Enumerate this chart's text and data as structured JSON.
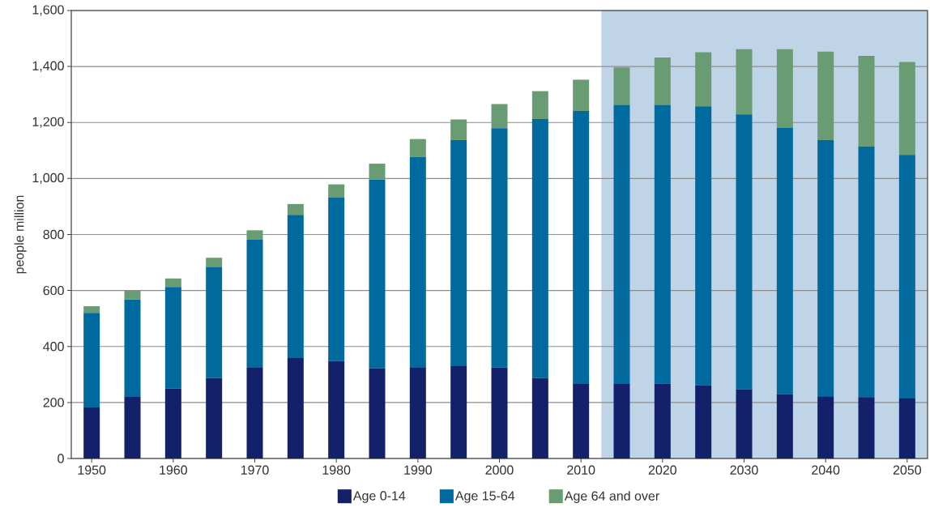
{
  "chart_data": {
    "type": "bar",
    "stacked": true,
    "ylabel": "people million",
    "x": [
      1950,
      1955,
      1960,
      1965,
      1970,
      1975,
      1980,
      1985,
      1990,
      1995,
      2000,
      2005,
      2010,
      2015,
      2020,
      2025,
      2030,
      2035,
      2040,
      2045,
      2050
    ],
    "xlim": [
      1947.5,
      2052.5
    ],
    "xticks": [
      1950,
      1960,
      1970,
      1980,
      1990,
      2000,
      2010,
      2020,
      2030,
      2040,
      2050
    ],
    "ylim": [
      0,
      1600
    ],
    "yticks": [
      {
        "value": 0,
        "label": "0"
      },
      {
        "value": 200,
        "label": "200"
      },
      {
        "value": 400,
        "label": "400"
      },
      {
        "value": 600,
        "label": "600"
      },
      {
        "value": 800,
        "label": "800"
      },
      {
        "value": 1000,
        "label": "1,000"
      },
      {
        "value": 1200,
        "label": "1,200"
      },
      {
        "value": 1400,
        "label": "1,400"
      },
      {
        "value": 1600,
        "label": "1,600"
      }
    ],
    "grid": "y",
    "legend": "bottom",
    "bands": [
      {
        "axis": "x",
        "from": 2012.5,
        "to": 2052.5,
        "color": "#c0d4e8"
      }
    ],
    "series": [
      {
        "name": "Age 0-14",
        "color": "#13206a",
        "values": [
          182,
          222,
          250,
          287,
          324,
          359,
          349,
          322,
          324,
          332,
          325,
          287,
          268,
          266,
          267,
          262,
          247,
          229,
          222,
          219,
          216
        ]
      },
      {
        "name": "Age 15-64",
        "color": "#006a9e",
        "values": [
          338,
          346,
          363,
          397,
          457,
          511,
          584,
          675,
          754,
          805,
          855,
          925,
          973,
          997,
          996,
          996,
          982,
          952,
          915,
          895,
          868
        ]
      },
      {
        "name": "Age 64 and over",
        "color": "#6a9c74",
        "values": [
          24,
          31,
          30,
          33,
          34,
          39,
          46,
          56,
          63,
          74,
          86,
          100,
          112,
          134,
          169,
          193,
          233,
          281,
          316,
          324,
          332
        ]
      }
    ]
  }
}
